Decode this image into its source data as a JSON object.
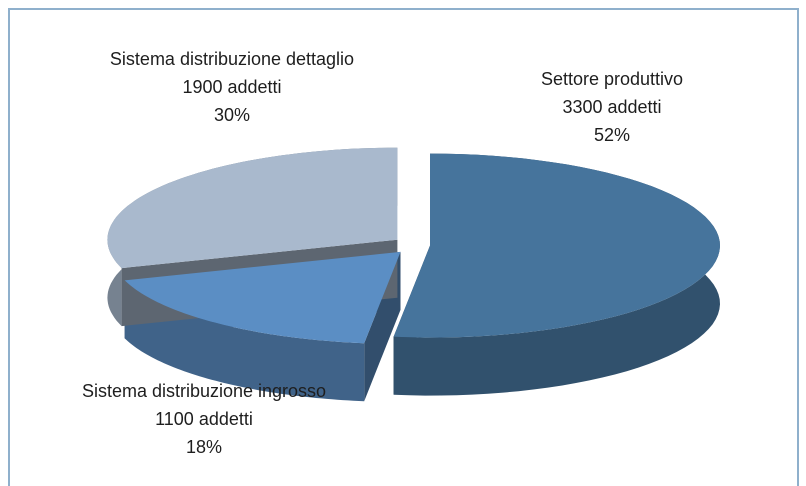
{
  "chart_data": {
    "type": "pie",
    "categories": [
      "Settore produttivo",
      "Sistema distribuzione ingrosso",
      "Sistema distribuzione dettaglio"
    ],
    "employee_labels": [
      "3300 addetti",
      "1100 addetti",
      "1900 addetti"
    ],
    "values": [
      52,
      18,
      30
    ],
    "value_labels": [
      "52%",
      "18%",
      "30%"
    ],
    "colors": [
      "#46749c",
      "#5b8ec4",
      "#a9b9cd"
    ]
  }
}
